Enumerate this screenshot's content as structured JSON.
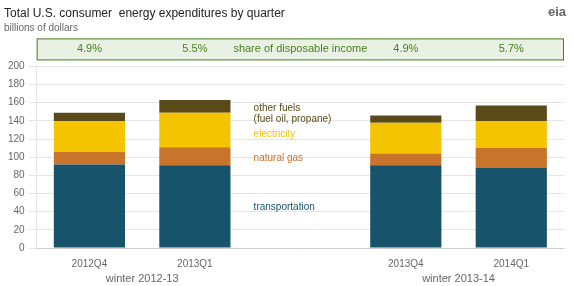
{
  "chart_data": {
    "type": "bar",
    "title": "Total U.S. consumer  energy expenditures by quarter",
    "subtitle": "billions of dollars",
    "categories": [
      "2012Q4",
      "2013Q1",
      "2013Q4",
      "2014Q1"
    ],
    "groups": [
      {
        "label": "winter 2012-13",
        "categories": [
          "2012Q4",
          "2013Q1"
        ]
      },
      {
        "label": "winter 2013-14",
        "categories": [
          "2013Q4",
          "2014Q1"
        ]
      }
    ],
    "series": [
      {
        "name": "transportation",
        "color": "#17536b",
        "values": [
          92,
          91,
          91,
          88
        ]
      },
      {
        "name": "natural gas",
        "color": "#c8742a",
        "values": [
          14,
          20,
          13,
          22
        ]
      },
      {
        "name": "electricity",
        "color": "#f5c400",
        "values": [
          34,
          38,
          34,
          30
        ]
      },
      {
        "name": "other fuels",
        "annotation": "(fuel oil, propane)",
        "color": "#5a4a1a",
        "values": [
          9,
          14,
          8,
          17
        ]
      }
    ],
    "stacked": true,
    "ylim": [
      0,
      200
    ],
    "yticks": [
      0,
      20,
      40,
      60,
      80,
      100,
      120,
      140,
      160,
      180,
      200
    ],
    "grid": true,
    "share": {
      "label": "share of disposable income",
      "values": [
        4.9,
        5.5,
        4.9,
        5.7
      ],
      "value_labels": [
        "4.9%",
        "5.5%",
        "4.9%",
        "5.7%"
      ],
      "color": "#4a8020"
    },
    "logo": "eia"
  }
}
